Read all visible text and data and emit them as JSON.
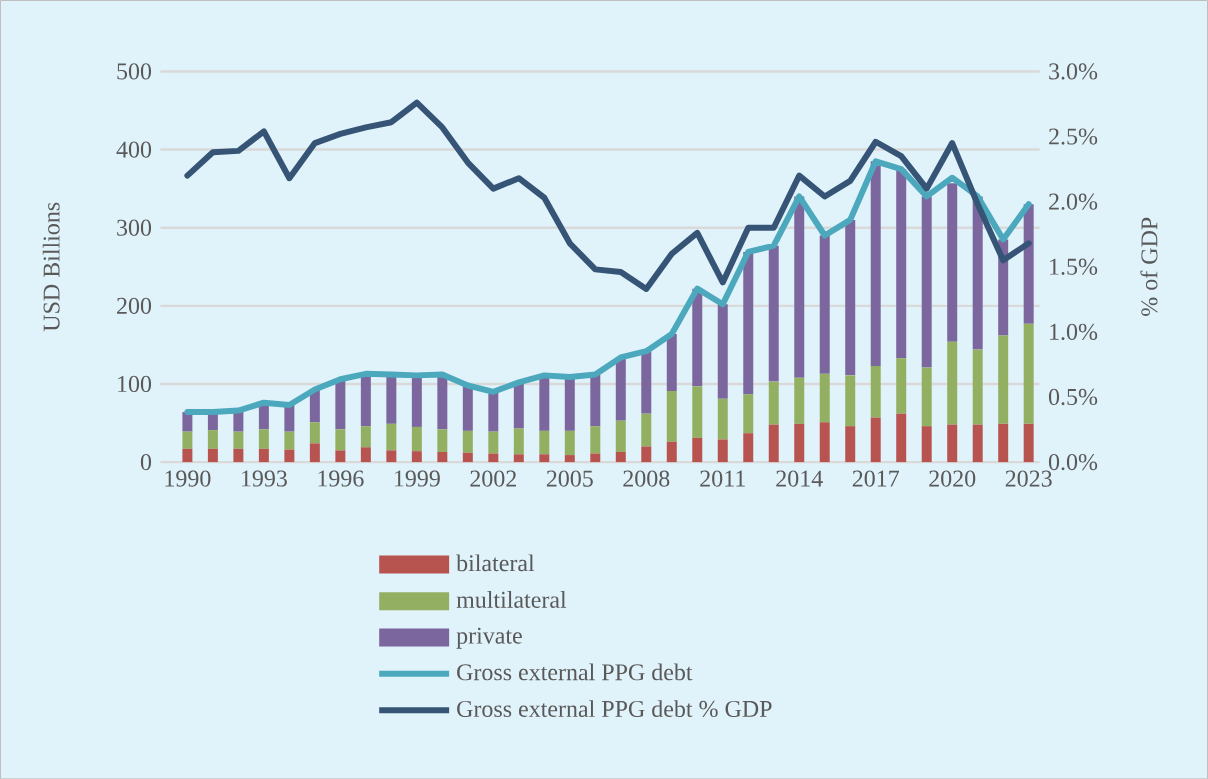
{
  "chart_data": {
    "type": "bar",
    "stacked": true,
    "ylabel": "USD Billions",
    "y2label": "% of GDP",
    "categories": [
      "1990",
      null,
      null,
      "1993",
      null,
      null,
      "1996",
      null,
      null,
      "1999",
      null,
      null,
      "2002",
      null,
      null,
      "2005",
      null,
      null,
      "2008",
      null,
      null,
      "2011",
      null,
      null,
      "2014",
      null,
      null,
      "2017",
      null,
      null,
      "2020",
      null,
      null,
      "2023"
    ],
    "series": [
      {
        "name": "bilateral",
        "color": "#b85450",
        "values": [
          17,
          17,
          17,
          17,
          16,
          24,
          15,
          19,
          15,
          14,
          13,
          12,
          11,
          10,
          10,
          9,
          11,
          13,
          20,
          26,
          31,
          29,
          37,
          48,
          49,
          51,
          46,
          57,
          62,
          46,
          48,
          48,
          49,
          49
        ]
      },
      {
        "name": "multilateral",
        "color": "#93b062",
        "values": [
          22,
          24,
          22,
          25,
          23,
          27,
          27,
          27,
          34,
          31,
          29,
          28,
          28,
          33,
          30,
          31,
          35,
          40,
          42,
          65,
          66,
          52,
          50,
          55,
          59,
          62,
          65,
          66,
          71,
          75,
          106,
          96,
          113,
          128
        ]
      },
      {
        "name": "private",
        "color": "#7b679e",
        "values": [
          25,
          23,
          27,
          34,
          34,
          42,
          64,
          67,
          63,
          66,
          70,
          58,
          51,
          59,
          71,
          69,
          66,
          81,
          80,
          73,
          125,
          121,
          182,
          174,
          232,
          177,
          199,
          262,
          242,
          219,
          203,
          196,
          123,
          153
        ]
      },
      {
        "name": "Gross external PPG debt",
        "type": "line",
        "color": "#4ba8bd",
        "values": [
          64,
          64,
          66,
          76,
          73,
          93,
          106,
          113,
          112,
          111,
          112,
          98,
          90,
          102,
          111,
          109,
          112,
          134,
          142,
          164,
          222,
          202,
          269,
          277,
          340,
          290,
          310,
          385,
          375,
          340,
          364,
          340,
          285,
          330
        ]
      },
      {
        "name": "Gross external PPG debt % GDP",
        "type": "line",
        "axis": "y2",
        "color": "#365475",
        "values": [
          2.2,
          2.38,
          2.39,
          2.54,
          2.18,
          2.45,
          2.52,
          2.57,
          2.61,
          2.76,
          2.57,
          2.3,
          2.1,
          2.18,
          2.03,
          1.68,
          1.48,
          1.46,
          1.33,
          1.6,
          1.76,
          1.38,
          1.8,
          1.8,
          2.2,
          2.04,
          2.16,
          2.46,
          2.35,
          2.1,
          2.45,
          1.98,
          1.55,
          1.68
        ]
      }
    ],
    "ylim": [
      0,
      500
    ],
    "yticks": [
      0,
      100,
      200,
      300,
      400,
      500
    ],
    "y2lim": [
      0,
      3.0
    ],
    "y2ticks": [
      {
        "value": 0,
        "label": "0.0%"
      },
      {
        "value": 0.5,
        "label": "0.5%"
      },
      {
        "value": 1.0,
        "label": "1.0%"
      },
      {
        "value": 1.5,
        "label": "1.5%"
      },
      {
        "value": 2.0,
        "label": "2.0%"
      },
      {
        "value": 2.5,
        "label": "2.5%"
      },
      {
        "value": 3.0,
        "label": "3.0%"
      }
    ],
    "grid": "y",
    "legend": "bottom"
  }
}
